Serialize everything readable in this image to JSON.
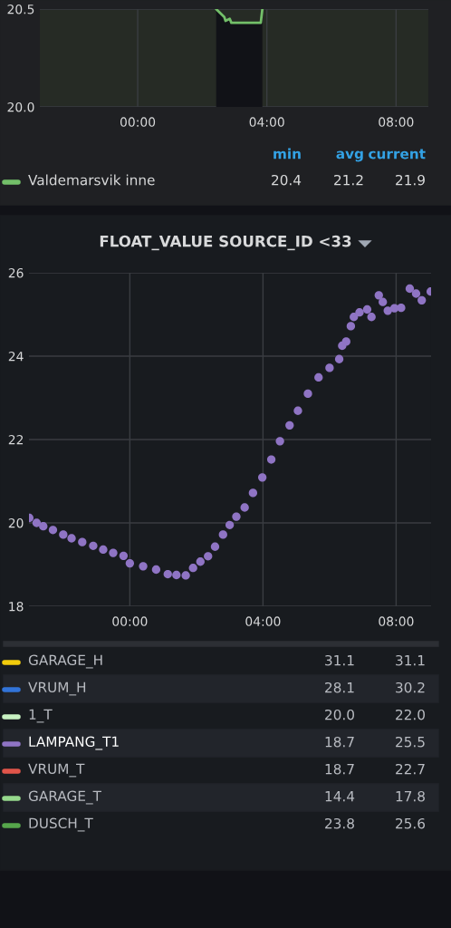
{
  "chart_data": [
    {
      "type": "area",
      "xlim": [
        -3.03,
        9.0
      ],
      "ylim": [
        20.0,
        20.5
      ],
      "xticks": [
        {
          "value": 0,
          "label": "00:00"
        },
        {
          "value": 4,
          "label": "04:00"
        },
        {
          "value": 8,
          "label": "08:00"
        }
      ],
      "yticks": [
        {
          "value": 20.0,
          "label": "20.0"
        },
        {
          "value": 20.5,
          "label": "20.5"
        }
      ],
      "grid": true,
      "legend": "bottom",
      "marker": "none",
      "series": [
        {
          "name": "Valdemarsvik inne",
          "color": "#73bf69",
          "x": [
            2.43,
            2.68,
            2.72,
            2.85,
            2.9,
            3.81,
            3.86
          ],
          "values": [
            20.5,
            20.46,
            20.44,
            20.45,
            20.43,
            20.43,
            20.5
          ]
        }
      ],
      "annotations": [
        "min",
        "avg",
        "current",
        "20.4",
        "21.2",
        "21.9"
      ]
    },
    {
      "type": "scatter",
      "title": "FLOAT_VALUE SOURCE_ID <33",
      "xlim": [
        -3.03,
        9.05
      ],
      "ylim": [
        18,
        26
      ],
      "xticks": [
        {
          "value": 0,
          "label": "00:00"
        },
        {
          "value": 4,
          "label": "04:00"
        },
        {
          "value": 8,
          "label": "08:00"
        }
      ],
      "yticks": [
        18,
        20,
        22,
        24,
        26
      ],
      "grid": true,
      "legend": "bottom",
      "marker": "circle",
      "series": [
        {
          "name": "GARAGE_H",
          "color": "#f2cc0c"
        },
        {
          "name": "VRUM_H",
          "color": "#3274d9"
        },
        {
          "name": "1_T",
          "color": "#c8f2c2"
        },
        {
          "name": "LAMPANG_T1",
          "color": "#8f74c4",
          "x": [
            -3.02,
            -2.8,
            -2.6,
            -2.31,
            -2.0,
            -1.75,
            -1.43,
            -1.1,
            -0.8,
            -0.5,
            -0.19,
            0.0,
            0.4,
            0.79,
            1.14,
            1.4,
            1.68,
            1.9,
            2.12,
            2.35,
            2.56,
            2.8,
            3.0,
            3.2,
            3.45,
            3.7,
            3.98,
            4.25,
            4.51,
            4.8,
            5.05,
            5.35,
            5.67,
            6.0,
            6.29,
            6.38,
            6.5,
            6.64,
            6.73,
            6.9,
            7.13,
            7.26,
            7.48,
            7.6,
            7.75,
            7.95,
            8.15,
            8.41,
            8.6,
            8.77,
            9.04
          ],
          "values": [
            20.12,
            20.0,
            19.92,
            19.83,
            19.72,
            19.63,
            19.54,
            19.45,
            19.36,
            19.28,
            19.21,
            19.03,
            18.96,
            18.88,
            18.77,
            18.75,
            18.74,
            18.92,
            19.07,
            19.2,
            19.43,
            19.72,
            19.95,
            20.15,
            20.37,
            20.72,
            21.09,
            21.52,
            21.96,
            22.34,
            22.69,
            23.1,
            23.49,
            23.72,
            23.93,
            24.25,
            24.35,
            24.72,
            24.94,
            25.05,
            25.12,
            24.94,
            25.46,
            25.3,
            25.09,
            25.15,
            25.16,
            25.62,
            25.5,
            25.34,
            25.55
          ]
        },
        {
          "name": "VRUM_T",
          "color": "#e0554a"
        },
        {
          "name": "GARAGE_T",
          "color": "#96d98d"
        },
        {
          "name": "DUSCH_T",
          "color": "#56a64b"
        }
      ],
      "annotations": [
        "31.1",
        "31.1",
        "28.1",
        "30.2",
        "20.0",
        "22.0",
        "18.7",
        "25.5",
        "18.7",
        "22.7",
        "14.4",
        "17.8",
        "23.8",
        "25.6"
      ]
    }
  ]
}
